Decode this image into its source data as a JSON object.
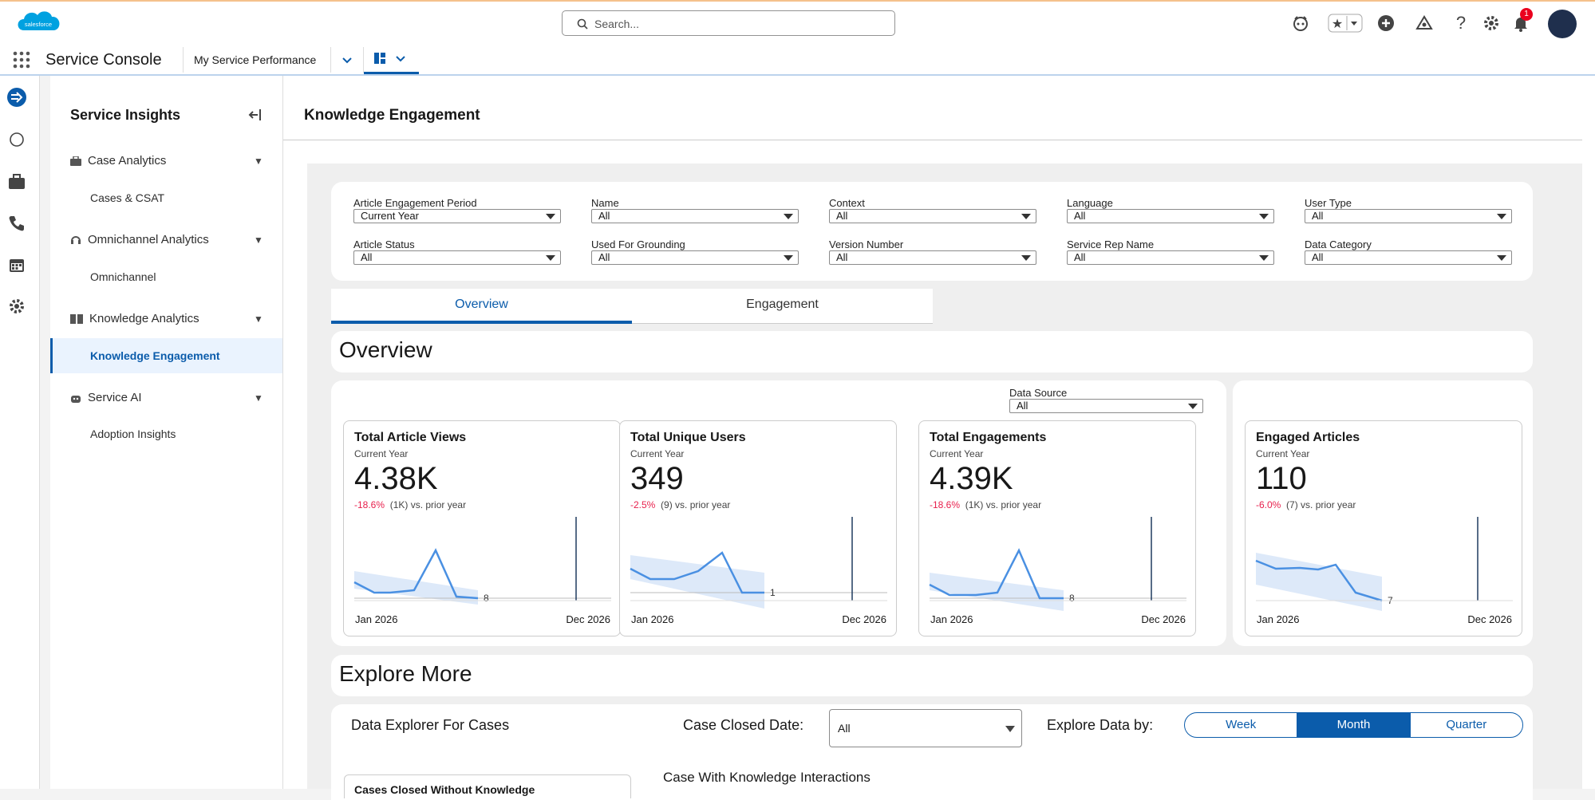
{
  "topbar": {
    "brand": "salesforce",
    "search_placeholder": "Search...",
    "notification_count": "1",
    "icons": [
      "einstein-icon",
      "favorites-star-icon",
      "add-icon",
      "trailhead-icon",
      "help-icon",
      "setup-gear-icon",
      "notifications-bell-icon"
    ]
  },
  "nav": {
    "app_name": "Service Console",
    "tab_label": "My Service Performance"
  },
  "sidebar": {
    "title": "Service Insights",
    "sections": [
      {
        "label": "Case Analytics",
        "items": [
          "Cases & CSAT"
        ]
      },
      {
        "label": "Omnichannel Analytics",
        "items": [
          "Omnichannel"
        ]
      },
      {
        "label": "Knowledge Analytics",
        "items": [
          "Knowledge Engagement"
        ]
      },
      {
        "label": "Service AI",
        "items": [
          "Adoption Insights"
        ]
      }
    ]
  },
  "main": {
    "title": "Knowledge Engagement",
    "filters": [
      {
        "label": "Article Engagement Period",
        "value": "Current Year"
      },
      {
        "label": "Name",
        "value": "All"
      },
      {
        "label": "Context",
        "value": "All"
      },
      {
        "label": "Language",
        "value": "All"
      },
      {
        "label": "User Type",
        "value": "All"
      },
      {
        "label": "Article Status",
        "value": "All"
      },
      {
        "label": "Used For Grounding",
        "value": "All"
      },
      {
        "label": "Version Number",
        "value": "All"
      },
      {
        "label": "Service Rep Name",
        "value": "All"
      },
      {
        "label": "Data Category",
        "value": "All"
      }
    ],
    "tabs": [
      "Overview",
      "Engagement"
    ],
    "overview_title": "Overview",
    "data_source": {
      "label": "Data Source",
      "value": "All"
    },
    "kpis": [
      {
        "title": "Total Article Views",
        "period": "Current Year",
        "value": "4.38K",
        "delta_pct": "-18.6%",
        "delta_abs": "(1K) vs. prior year",
        "end_label": "8",
        "x_start": "Jan 2026",
        "x_end": "Dec 2026"
      },
      {
        "title": "Total Unique Users",
        "period": "Current Year",
        "value": "349",
        "delta_pct": "-2.5%",
        "delta_abs": "(9) vs. prior year",
        "end_label": "1",
        "x_start": "Jan 2026",
        "x_end": "Dec 2026"
      },
      {
        "title": "Total Engagements",
        "period": "Current Year",
        "value": "4.39K",
        "delta_pct": "-18.6%",
        "delta_abs": "(1K) vs. prior year",
        "end_label": "8",
        "x_start": "Jan 2026",
        "x_end": "Dec 2026"
      },
      {
        "title": "Engaged Articles",
        "period": "Current Year",
        "value": "110",
        "delta_pct": "-6.0%",
        "delta_abs": "(7) vs. prior year",
        "end_label": "7",
        "x_start": "Jan 2026",
        "x_end": "Dec 2026"
      }
    ],
    "explore_title": "Explore More",
    "explorer": {
      "title": "Data Explorer For Cases",
      "date_label": "Case Closed Date:",
      "date_value": "All",
      "by_label": "Explore Data by:",
      "granularity": [
        "Week",
        "Month",
        "Quarter"
      ],
      "granularity_selected": "Month",
      "subcard_title": "Cases Closed Without Knowledge",
      "chart_title": "Case With Knowledge Interactions"
    }
  },
  "colors": {
    "accent": "#0b5cab",
    "negative": "#e8204d",
    "sparkline": "#4a90e2",
    "band": "#cfe0f7"
  }
}
